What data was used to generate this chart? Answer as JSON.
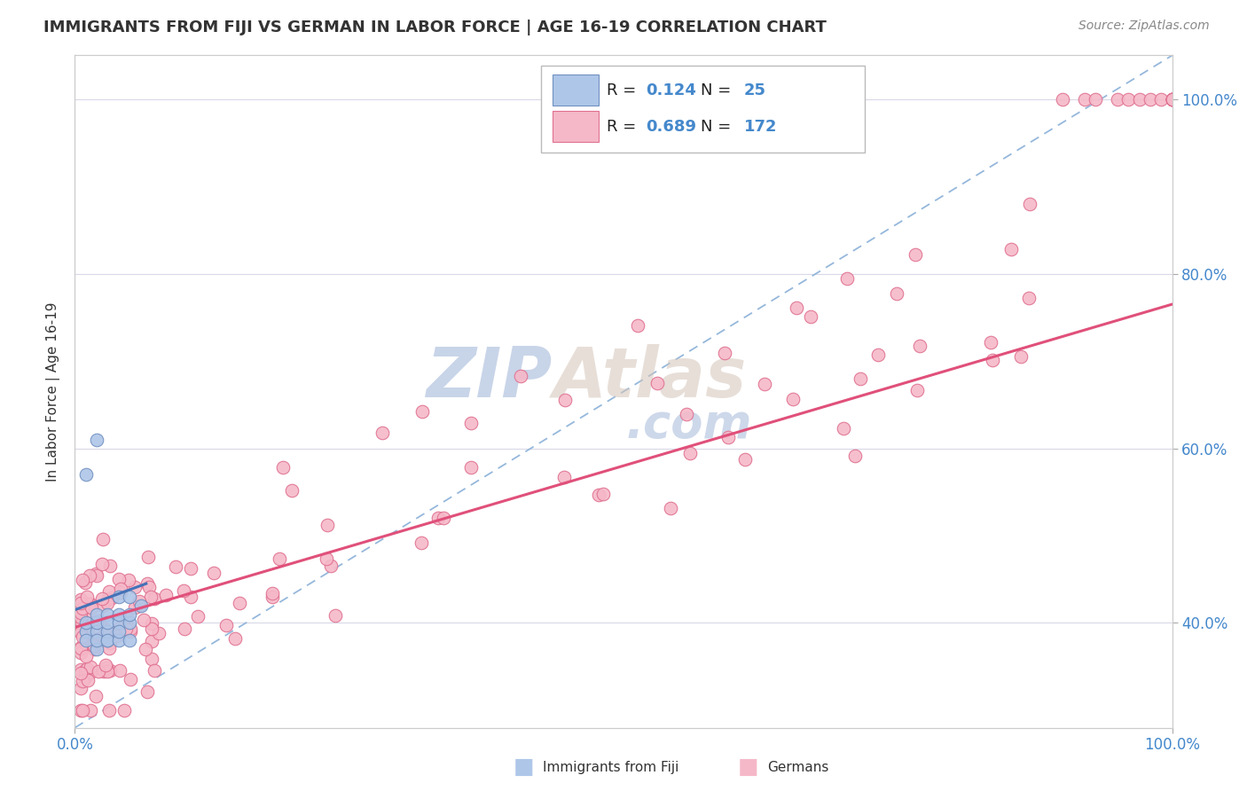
{
  "title": "IMMIGRANTS FROM FIJI VS GERMAN IN LABOR FORCE | AGE 16-19 CORRELATION CHART",
  "source_text": "Source: ZipAtlas.com",
  "ylabel": "In Labor Force | Age 16-19",
  "legend_labels": [
    "Immigrants from Fiji",
    "Germans"
  ],
  "fiji_R": 0.124,
  "fiji_N": 25,
  "german_R": 0.689,
  "german_N": 172,
  "fiji_color": "#aec6e8",
  "german_color": "#f5b8c8",
  "fiji_edge_color": "#7090c0",
  "german_edge_color": "#e07090",
  "fiji_trend_color": "#4472b8",
  "german_trend_color": "#e0507a",
  "diagonal_color": "#8ab0d8",
  "watermark_color": "#c8d4e8",
  "background_color": "#ffffff",
  "grid_color": "#d8d8e8",
  "title_color": "#333333",
  "axis_label_color": "#333333",
  "tick_color_blue": "#4488cc",
  "xlim": [
    0.0,
    1.0
  ],
  "ylim": [
    0.28,
    1.05
  ],
  "x_ticks": [
    0.0,
    1.0
  ],
  "x_tick_labels": [
    "0.0%",
    "100.0%"
  ],
  "y_ticks_right": [
    0.4,
    0.6,
    0.8,
    1.0
  ],
  "y_tick_labels_right": [
    "40.0%",
    "60.0%",
    "80.0%",
    "100.0%"
  ]
}
